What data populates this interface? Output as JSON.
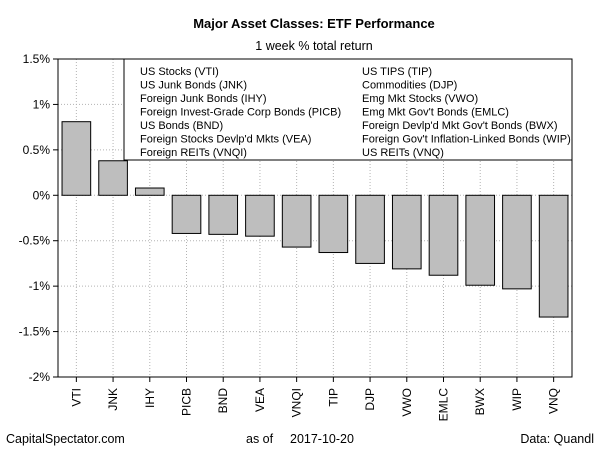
{
  "chart_data": {
    "type": "bar",
    "title": "Major Asset Classes: ETF Performance",
    "subtitle": "1 week % total return",
    "categories": [
      "VTI",
      "JNK",
      "IHY",
      "PICB",
      "BND",
      "VEA",
      "VNQI",
      "TIP",
      "DJP",
      "VWO",
      "EMLC",
      "BWX",
      "WIP",
      "VNQ"
    ],
    "values": [
      0.81,
      0.38,
      0.08,
      -0.42,
      -0.43,
      -0.45,
      -0.57,
      -0.63,
      -0.75,
      -0.81,
      -0.88,
      -0.99,
      -1.03,
      -1.34
    ],
    "ylim": [
      -2,
      1.5
    ],
    "yticks": [
      1.5,
      1,
      0.5,
      0,
      -0.5,
      -1,
      -1.5,
      -2
    ],
    "ytick_labels": [
      "1.5%",
      "1%",
      "0.5%",
      "0%",
      "-0.5%",
      "-1%",
      "-1.5%",
      "-2%"
    ],
    "grid": true,
    "legend_placement": "top",
    "legend_columns": [
      [
        "US Stocks (VTI)",
        "US Junk Bonds (JNK)",
        "Foreign Junk Bonds (IHY)",
        "Foreign Invest-Grade Corp Bonds (PICB)",
        "US Bonds (BND)",
        "Foreign Stocks Devlp'd Mkts (VEA)",
        "Foreign REITs (VNQI)"
      ],
      [
        "US TIPS (TIP)",
        "Commodities (DJP)",
        "Emg Mkt Stocks (VWO)",
        "Emg Mkt Gov't Bonds (EMLC)",
        "Foreign Devlp'd Mkt Gov't Bonds (BWX)",
        "Foreign Gov't Inflation-Linked Bonds (WIP)",
        "US REITs (VNQ)"
      ]
    ],
    "bar_color": "#bebebe",
    "bar_border_color": "#000000",
    "grid_color": "#b3b3b3"
  },
  "footer": {
    "source_left": "CapitalSpectator.com",
    "as_of_label": "as of",
    "date": "2017-10-20",
    "data_credit": "Data: Quandl"
  }
}
